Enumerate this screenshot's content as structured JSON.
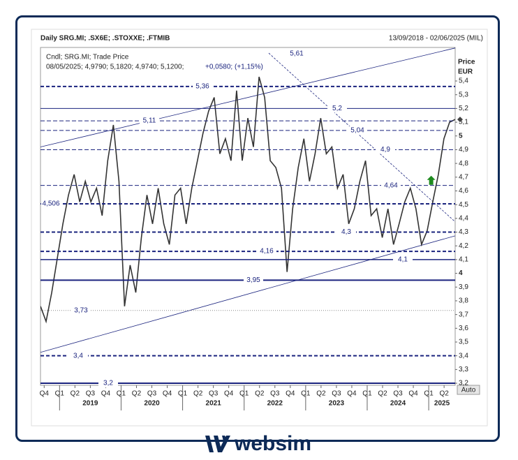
{
  "chart_data": {
    "type": "line",
    "title": "Daily SRG.MI; .SX6E; .STOXXE; .FTMIB",
    "date_range": "13/09/2018 - 02/06/2025 (MIL)",
    "info": {
      "line1": "Cndl; SRG.MI; Trade Price",
      "ohlc": "08/05/2025; 4,9790; 5,1820; 4,9740; 5,1200;",
      "change": "+0,0580; (+1,15%)"
    },
    "axis_title": "Price",
    "axis_unit": "EUR",
    "auto_button": "Auto",
    "series": [
      {
        "name": "SRG.MI",
        "color": "#333333",
        "values": [
          3.76,
          3.65,
          3.86,
          4.11,
          4.36,
          4.57,
          4.72,
          4.52,
          4.67,
          4.52,
          4.62,
          4.42,
          4.82,
          5.08,
          4.67,
          3.76,
          4.06,
          3.86,
          4.26,
          4.57,
          4.36,
          4.62,
          4.36,
          4.21,
          4.57,
          4.62,
          4.36,
          4.62,
          4.82,
          5.02,
          5.18,
          5.28,
          4.87,
          4.98,
          4.82,
          5.33,
          4.82,
          5.13,
          4.92,
          5.43,
          5.28,
          4.82,
          4.77,
          4.62,
          4.01,
          4.47,
          4.77,
          4.98,
          4.67,
          4.87,
          5.13,
          4.87,
          4.92,
          4.62,
          4.72,
          4.36,
          4.47,
          4.67,
          4.82,
          4.42,
          4.47,
          4.26,
          4.47,
          4.21,
          4.36,
          4.52,
          4.62,
          4.47,
          4.21,
          4.31,
          4.52,
          4.72,
          4.98,
          5.1,
          5.12
        ]
      }
    ],
    "xlim": [
      2018.69,
      2025.43
    ],
    "ylim": [
      3.185,
      5.644
    ],
    "yticks": [
      {
        "value": 3.2,
        "label": "3,2"
      },
      {
        "value": 3.3,
        "label": "3,3"
      },
      {
        "value": 3.4,
        "label": "3,4"
      },
      {
        "value": 3.5,
        "label": "3,5"
      },
      {
        "value": 3.6,
        "label": "3,6"
      },
      {
        "value": 3.7,
        "label": "3,7"
      },
      {
        "value": 3.8,
        "label": "3,8"
      },
      {
        "value": 3.9,
        "label": "3,9"
      },
      4,
      {
        "value": 4.1,
        "label": "4,1"
      },
      {
        "value": 4.2,
        "label": "4,2"
      },
      {
        "value": 4.3,
        "label": "4,3"
      },
      {
        "value": 4.4,
        "label": "4,4"
      },
      {
        "value": 4.5,
        "label": "4,5"
      },
      {
        "value": 4.6,
        "label": "4,6"
      },
      {
        "value": 4.7,
        "label": "4,7"
      },
      {
        "value": 4.8,
        "label": "4,8"
      },
      {
        "value": 4.9,
        "label": "4,9"
      },
      5,
      {
        "value": 5.1,
        "label": "5,1"
      },
      {
        "value": 5.2,
        "label": "5,2"
      },
      {
        "value": 5.3,
        "label": "5,3"
      },
      {
        "value": 5.4,
        "label": "5,4"
      }
    ],
    "xticks": [
      {
        "value": 2018.75,
        "label": "Q4"
      },
      {
        "value": 2019.0,
        "label": "Q1"
      },
      {
        "value": 2019.25,
        "label": "Q2"
      },
      {
        "value": 2019.5,
        "label": "Q3"
      },
      {
        "value": 2019.75,
        "label": "Q4"
      },
      {
        "value": 2020.0,
        "label": "Q1"
      },
      {
        "value": 2020.25,
        "label": "Q2"
      },
      {
        "value": 2020.5,
        "label": "Q3"
      },
      {
        "value": 2020.75,
        "label": "Q4"
      },
      {
        "value": 2021.0,
        "label": "Q1"
      },
      {
        "value": 2021.25,
        "label": "Q2"
      },
      {
        "value": 2021.5,
        "label": "Q3"
      },
      {
        "value": 2021.75,
        "label": "Q4"
      },
      {
        "value": 2022.0,
        "label": "Q1"
      },
      {
        "value": 2022.25,
        "label": "Q2"
      },
      {
        "value": 2022.5,
        "label": "Q3"
      },
      {
        "value": 2022.75,
        "label": "Q4"
      },
      {
        "value": 2023.0,
        "label": "Q1"
      },
      {
        "value": 2023.25,
        "label": "Q2"
      },
      {
        "value": 2023.5,
        "label": "Q3"
      },
      {
        "value": 2023.75,
        "label": "Q4"
      },
      {
        "value": 2024.0,
        "label": "Q1"
      },
      {
        "value": 2024.25,
        "label": "Q2"
      },
      {
        "value": 2024.5,
        "label": "Q3"
      },
      {
        "value": 2024.75,
        "label": "Q4"
      },
      {
        "value": 2025.0,
        "label": "Q1"
      },
      {
        "value": 2025.25,
        "label": "Q2"
      }
    ],
    "years": [
      2019,
      2020,
      2021,
      2022,
      2023,
      2024,
      2025
    ],
    "levels": [
      {
        "value": 5.61,
        "label": "5,61",
        "style": "none"
      },
      {
        "value": 5.36,
        "label": "5,36",
        "style": "dash-thick"
      },
      {
        "value": 5.2,
        "label": "5,2",
        "style": "solid"
      },
      {
        "value": 5.11,
        "label": "5,11",
        "style": "dash"
      },
      {
        "value": 5.04,
        "label": "5,04",
        "style": "dash"
      },
      {
        "value": 4.9,
        "label": "4,9",
        "style": "dash"
      },
      {
        "value": 4.64,
        "label": "4,64",
        "style": "dash"
      },
      {
        "value": 4.506,
        "label": "4,506",
        "style": "dash-thick"
      },
      {
        "value": 4.3,
        "label": "4,3",
        "style": "dash-thick"
      },
      {
        "value": 4.16,
        "label": "4,16",
        "style": "dash-thick"
      },
      {
        "value": 4.1,
        "label": "4,1",
        "style": "solid-mid"
      },
      {
        "value": 3.95,
        "label": "3,95",
        "style": "solid-thick"
      },
      {
        "value": 3.73,
        "label": "3,73",
        "style": "dot"
      },
      {
        "value": 3.4,
        "label": "3,4",
        "style": "dash-thick"
      },
      {
        "value": 3.2,
        "label": "3,2",
        "style": "solid-thick"
      }
    ],
    "level_color": "#1a237e",
    "trendlines": [
      {
        "points": [
          [
            2018.69,
            4.92
          ],
          [
            2025.43,
            5.64
          ]
        ]
      },
      {
        "points": [
          [
            2018.69,
            3.425
          ],
          [
            2025.43,
            4.273
          ]
        ]
      },
      {
        "points": [
          [
            2022.4,
            5.603
          ],
          [
            2025.43,
            4.375
          ]
        ]
      }
    ],
    "signal": {
      "x": 2025.04,
      "value": 4.67,
      "color": "#1e8a1e"
    }
  },
  "footer": {
    "brand": "websim"
  }
}
